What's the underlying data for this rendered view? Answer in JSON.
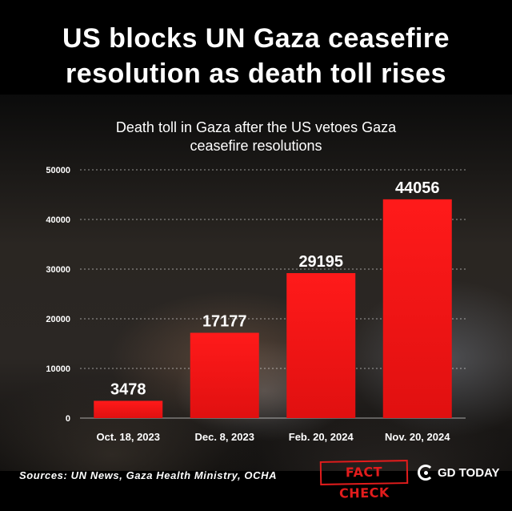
{
  "headline": {
    "line1": "US blocks UN Gaza ceasefire",
    "line2": "resolution as death toll rises"
  },
  "chart_data": {
    "type": "bar",
    "title_line1": "Death toll in Gaza after the US vetoes Gaza",
    "title_line2": "ceasefire resolutions",
    "categories": [
      "Oct. 18, 2023",
      "Dec. 8, 2023",
      "Feb. 20, 2024",
      "Nov. 20, 2024"
    ],
    "values": [
      3478,
      17177,
      29195,
      44056
    ],
    "value_labels": [
      "3478",
      "17177",
      "29195",
      "44056"
    ],
    "yticks": [
      "0",
      "10000",
      "20000",
      "30000",
      "40000",
      "50000"
    ],
    "ylim": [
      0,
      50000
    ],
    "bar_color": "#e01010",
    "grid": true
  },
  "footer": {
    "sources": "Sources: UN News, Gaza Health Ministry, OCHA",
    "stamp": "FACT CHECK",
    "logo_text": "GD TODAY"
  }
}
